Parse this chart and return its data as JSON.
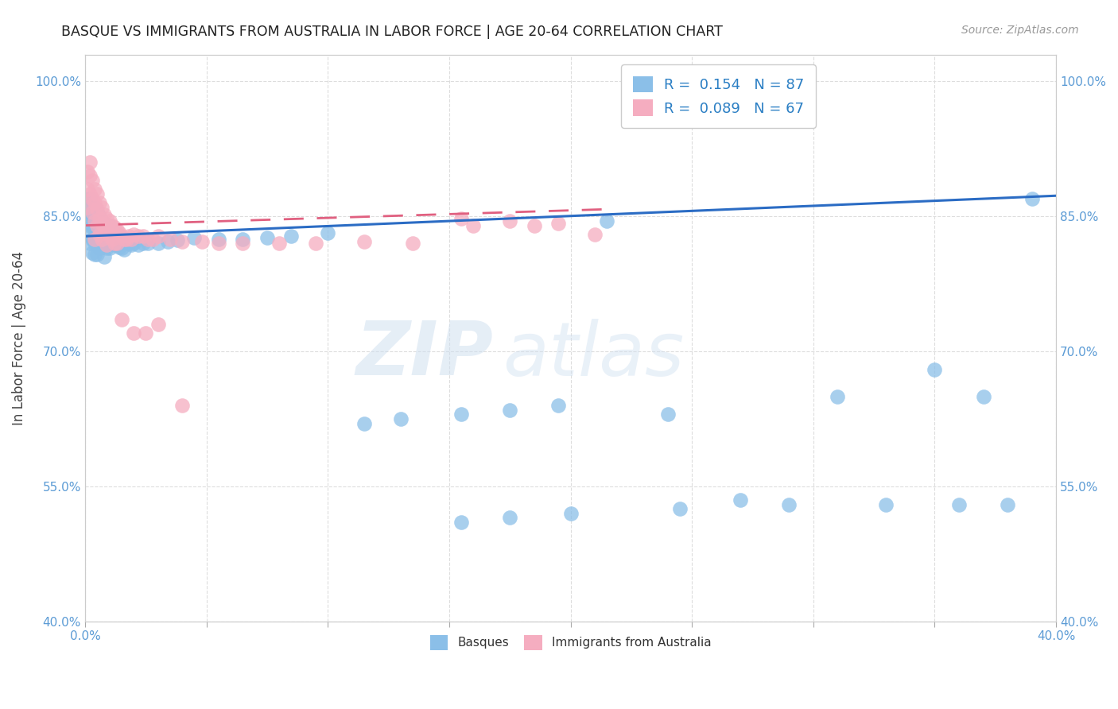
{
  "title": "BASQUE VS IMMIGRANTS FROM AUSTRALIA IN LABOR FORCE | AGE 20-64 CORRELATION CHART",
  "source": "Source: ZipAtlas.com",
  "ylabel": "In Labor Force | Age 20-64",
  "xlim": [
    0.0,
    0.4
  ],
  "ylim": [
    0.4,
    1.03
  ],
  "xticks": [
    0.0,
    0.05,
    0.1,
    0.15,
    0.2,
    0.25,
    0.3,
    0.35,
    0.4
  ],
  "yticks": [
    0.4,
    0.55,
    0.7,
    0.85,
    1.0
  ],
  "ytick_labels": [
    "40.0%",
    "55.0%",
    "70.0%",
    "85.0%",
    "100.0%"
  ],
  "xtick_labels": [
    "0.0%",
    "",
    "",
    "",
    "",
    "",
    "",
    "",
    "40.0%"
  ],
  "blue_R": 0.154,
  "blue_N": 87,
  "pink_R": 0.089,
  "pink_N": 67,
  "blue_color": "#8bbfe8",
  "pink_color": "#f5adc0",
  "blue_line_color": "#2b6cc4",
  "pink_line_color": "#e06080",
  "watermark_zip": "ZIP",
  "watermark_atlas": "atlas",
  "legend_label_blue": "Basques",
  "legend_label_pink": "Immigrants from Australia",
  "blue_line_x0": 0.0,
  "blue_line_x1": 0.4,
  "blue_line_y0": 0.828,
  "blue_line_y1": 0.873,
  "pink_line_x0": 0.0,
  "pink_line_x1": 0.215,
  "pink_line_y0": 0.84,
  "pink_line_y1": 0.858,
  "blue_x": [
    0.001,
    0.001,
    0.001,
    0.002,
    0.002,
    0.002,
    0.002,
    0.003,
    0.003,
    0.003,
    0.003,
    0.003,
    0.004,
    0.004,
    0.004,
    0.004,
    0.004,
    0.005,
    0.005,
    0.005,
    0.005,
    0.005,
    0.006,
    0.006,
    0.006,
    0.006,
    0.007,
    0.007,
    0.007,
    0.008,
    0.008,
    0.008,
    0.008,
    0.009,
    0.009,
    0.009,
    0.01,
    0.01,
    0.01,
    0.011,
    0.011,
    0.012,
    0.012,
    0.013,
    0.013,
    0.014,
    0.014,
    0.015,
    0.015,
    0.016,
    0.016,
    0.017,
    0.018,
    0.019,
    0.02,
    0.022,
    0.024,
    0.026,
    0.03,
    0.034,
    0.038,
    0.045,
    0.055,
    0.065,
    0.075,
    0.085,
    0.1,
    0.115,
    0.13,
    0.155,
    0.175,
    0.195,
    0.215,
    0.24,
    0.27,
    0.29,
    0.31,
    0.33,
    0.35,
    0.36,
    0.37,
    0.38,
    0.39,
    0.245,
    0.2,
    0.175,
    0.155
  ],
  "blue_y": [
    0.87,
    0.85,
    0.83,
    0.87,
    0.855,
    0.84,
    0.82,
    0.86,
    0.85,
    0.84,
    0.825,
    0.81,
    0.86,
    0.85,
    0.835,
    0.82,
    0.808,
    0.855,
    0.845,
    0.835,
    0.82,
    0.808,
    0.85,
    0.84,
    0.828,
    0.815,
    0.845,
    0.835,
    0.82,
    0.842,
    0.83,
    0.818,
    0.805,
    0.838,
    0.828,
    0.815,
    0.84,
    0.828,
    0.815,
    0.835,
    0.82,
    0.83,
    0.818,
    0.83,
    0.818,
    0.828,
    0.816,
    0.826,
    0.815,
    0.824,
    0.813,
    0.822,
    0.82,
    0.818,
    0.82,
    0.818,
    0.82,
    0.82,
    0.82,
    0.822,
    0.824,
    0.826,
    0.825,
    0.825,
    0.826,
    0.828,
    0.832,
    0.62,
    0.625,
    0.63,
    0.635,
    0.64,
    0.845,
    0.63,
    0.535,
    0.53,
    0.65,
    0.53,
    0.68,
    0.53,
    0.65,
    0.53,
    0.87,
    0.525,
    0.52,
    0.515,
    0.51
  ],
  "pink_x": [
    0.001,
    0.001,
    0.001,
    0.002,
    0.002,
    0.002,
    0.003,
    0.003,
    0.003,
    0.004,
    0.004,
    0.004,
    0.004,
    0.005,
    0.005,
    0.005,
    0.006,
    0.006,
    0.006,
    0.007,
    0.007,
    0.007,
    0.008,
    0.008,
    0.009,
    0.009,
    0.009,
    0.01,
    0.01,
    0.011,
    0.011,
    0.012,
    0.012,
    0.013,
    0.013,
    0.014,
    0.015,
    0.016,
    0.017,
    0.018,
    0.019,
    0.02,
    0.022,
    0.024,
    0.026,
    0.028,
    0.03,
    0.035,
    0.04,
    0.048,
    0.055,
    0.065,
    0.08,
    0.095,
    0.115,
    0.135,
    0.16,
    0.185,
    0.21,
    0.195,
    0.175,
    0.155,
    0.015,
    0.02,
    0.025,
    0.03,
    0.04
  ],
  "pink_y": [
    0.9,
    0.88,
    0.86,
    0.91,
    0.895,
    0.875,
    0.89,
    0.87,
    0.855,
    0.88,
    0.865,
    0.845,
    0.825,
    0.875,
    0.858,
    0.84,
    0.865,
    0.848,
    0.83,
    0.86,
    0.842,
    0.825,
    0.852,
    0.838,
    0.848,
    0.835,
    0.818,
    0.845,
    0.828,
    0.84,
    0.825,
    0.838,
    0.82,
    0.835,
    0.82,
    0.832,
    0.828,
    0.825,
    0.825,
    0.828,
    0.825,
    0.83,
    0.828,
    0.828,
    0.825,
    0.825,
    0.828,
    0.825,
    0.822,
    0.822,
    0.82,
    0.82,
    0.82,
    0.82,
    0.822,
    0.82,
    0.84,
    0.84,
    0.83,
    0.842,
    0.845,
    0.848,
    0.735,
    0.72,
    0.72,
    0.73,
    0.64
  ]
}
